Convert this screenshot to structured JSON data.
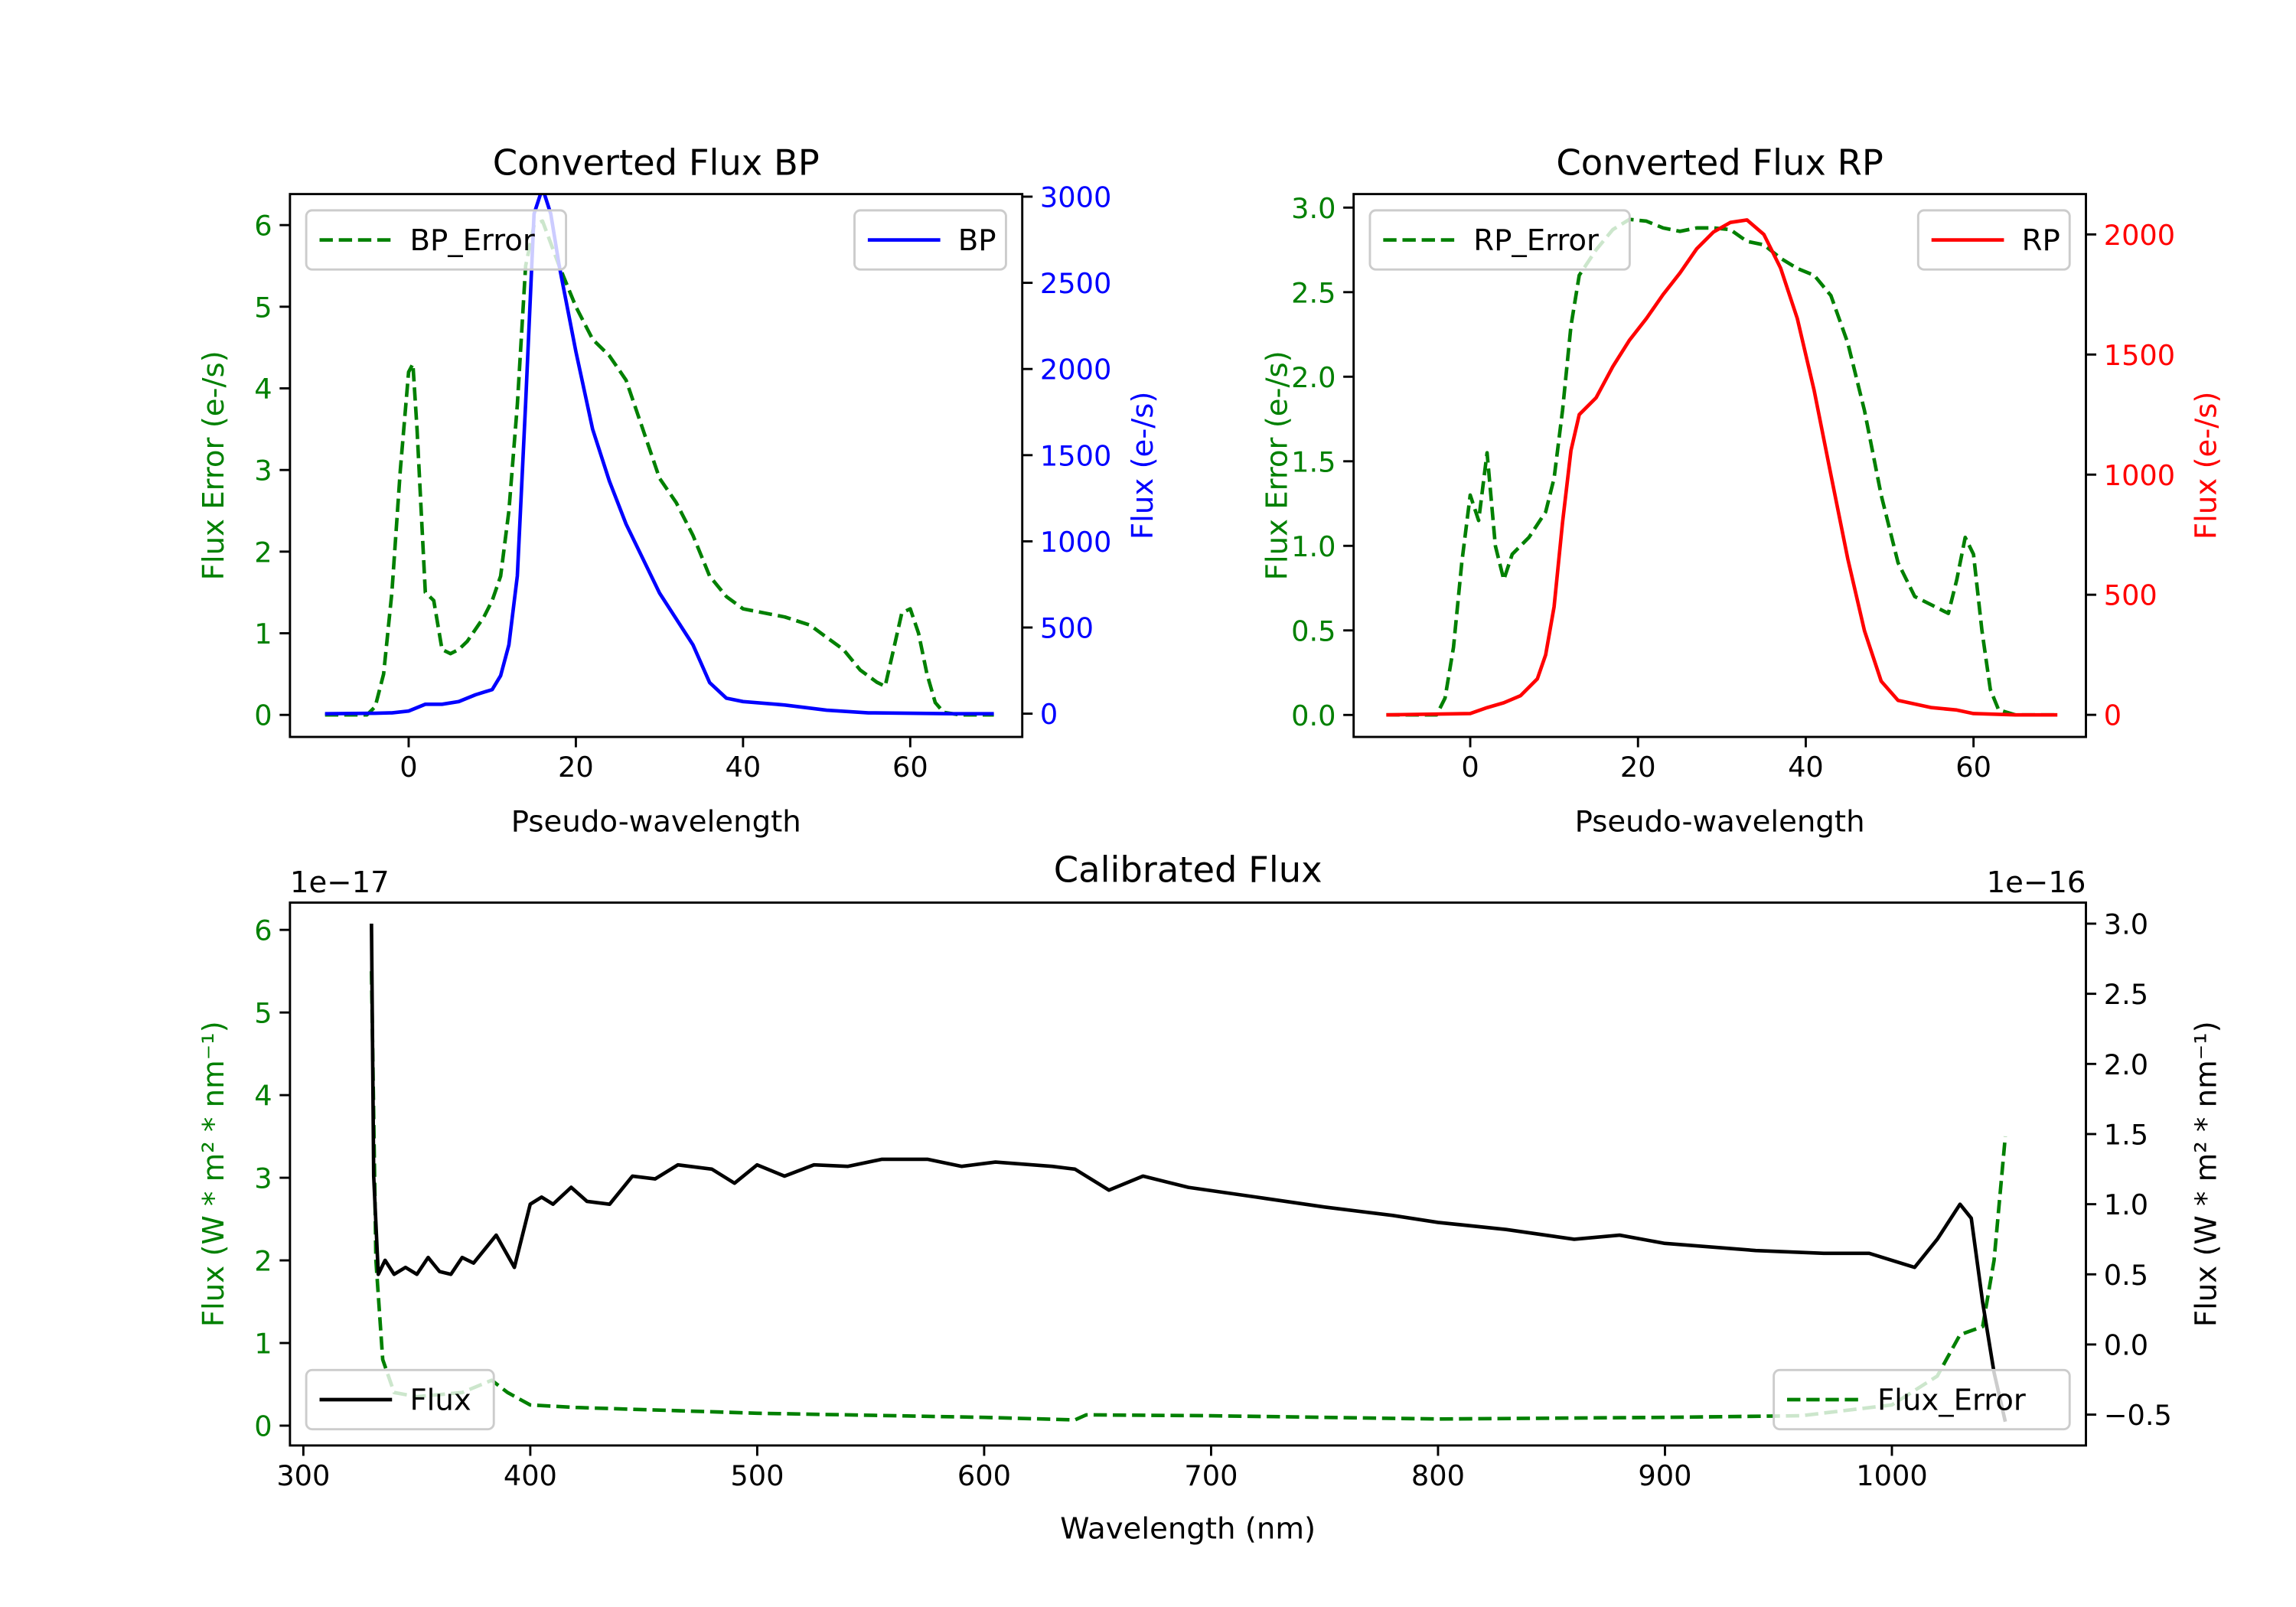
{
  "chart_data": [
    {
      "type": "line",
      "title": "Converted Flux BP",
      "xlabel": "Pseudo-wavelength",
      "xlim": [
        -14.2,
        73.4
      ],
      "xticks": [
        0,
        20,
        40,
        60
      ],
      "xtick_labels": [
        "0",
        "20",
        "40",
        "60"
      ],
      "left_axis": {
        "label": "Flux Error (e-/s)",
        "color": "#008000",
        "ylim": [
          -0.27,
          6.38
        ],
        "ticks": [
          0,
          1,
          2,
          3,
          4,
          5,
          6
        ],
        "tick_labels": [
          "0",
          "1",
          "2",
          "3",
          "4",
          "5",
          "6"
        ]
      },
      "right_axis": {
        "label": "Flux (e-/s)",
        "color": "#0000ff",
        "ylim": [
          -135,
          3015
        ],
        "ticks": [
          0,
          500,
          1000,
          1500,
          2000,
          2500,
          3000
        ],
        "tick_labels": [
          "0",
          "500",
          "1000",
          "1500",
          "2000",
          "2500",
          "3000"
        ]
      },
      "series": [
        {
          "name": "BP_Error",
          "axis": "left",
          "color": "#008000",
          "style": "dashed",
          "x": [
            -10,
            -5,
            -4,
            -3,
            -2,
            -1,
            0,
            0.5,
            1,
            2,
            3,
            4,
            5,
            6,
            7,
            9,
            10,
            11,
            12,
            13,
            14,
            15,
            16,
            18,
            20,
            22,
            24,
            26,
            28,
            30,
            32,
            34,
            36,
            38,
            40,
            45,
            48,
            50,
            52,
            54,
            56,
            57,
            58,
            59,
            60,
            61,
            62,
            63,
            64,
            66,
            70
          ],
          "y": [
            0,
            0,
            0.1,
            0.5,
            1.5,
            3,
            4.2,
            4.3,
            3.5,
            1.5,
            1.4,
            0.8,
            0.75,
            0.8,
            0.9,
            1.2,
            1.4,
            1.7,
            2.5,
            3.8,
            5.5,
            6.0,
            6.05,
            5.5,
            5.0,
            4.6,
            4.4,
            4.1,
            3.5,
            2.9,
            2.6,
            2.2,
            1.7,
            1.45,
            1.3,
            1.2,
            1.1,
            0.95,
            0.8,
            0.55,
            0.4,
            0.35,
            0.8,
            1.25,
            1.3,
            1.0,
            0.5,
            0.15,
            0.03,
            0,
            0
          ]
        },
        {
          "name": "BP",
          "axis": "right",
          "color": "#0000ff",
          "style": "solid",
          "x": [
            -10,
            -4,
            -2,
            0,
            2,
            4,
            6,
            8,
            10,
            11,
            12,
            13,
            14,
            15,
            16,
            17,
            18,
            20,
            22,
            24,
            26,
            28,
            30,
            32,
            34,
            36,
            38,
            40,
            45,
            50,
            55,
            60,
            65,
            70
          ],
          "y": [
            0,
            2,
            5,
            15,
            55,
            55,
            70,
            110,
            140,
            220,
            400,
            800,
            1800,
            2900,
            3050,
            2900,
            2600,
            2100,
            1650,
            1350,
            1100,
            900,
            700,
            550,
            400,
            180,
            90,
            70,
            50,
            20,
            5,
            2,
            0,
            0
          ]
        }
      ],
      "legends": [
        {
          "location": "upper-left",
          "entries": [
            {
              "label": "BP_Error",
              "color": "#008000",
              "style": "dashed"
            }
          ]
        },
        {
          "location": "upper-right",
          "entries": [
            {
              "label": "BP",
              "color": "#0000ff",
              "style": "solid"
            }
          ]
        }
      ]
    },
    {
      "type": "line",
      "title": "Converted Flux RP",
      "xlabel": "Pseudo-wavelength",
      "xlim": [
        -13.9,
        73.4
      ],
      "xticks": [
        0,
        20,
        40,
        60
      ],
      "xtick_labels": [
        "0",
        "20",
        "40",
        "60"
      ],
      "left_axis": {
        "label": "Flux Error (e-/s)",
        "color": "#008000",
        "ylim": [
          -0.13,
          3.08
        ],
        "ticks": [
          0,
          0.5,
          1,
          1.5,
          2,
          2.5,
          3
        ],
        "tick_labels": [
          "0.0",
          "0.5",
          "1.0",
          "1.5",
          "2.0",
          "2.5",
          "3.0"
        ]
      },
      "right_axis": {
        "label": "Flux (e-/s)",
        "color": "#ff0000",
        "ylim": [
          -92,
          2168
        ],
        "ticks": [
          0,
          500,
          1000,
          1500,
          2000
        ],
        "tick_labels": [
          "0",
          "500",
          "1000",
          "1500",
          "2000"
        ]
      },
      "series": [
        {
          "name": "RP_Error",
          "axis": "left",
          "color": "#008000",
          "style": "dashed",
          "x": [
            -10,
            -4,
            -3,
            -2,
            -1,
            0,
            1,
            2,
            3,
            4,
            5,
            7,
            9,
            10,
            11,
            12,
            13,
            15,
            17,
            19,
            21,
            23,
            25,
            27,
            29,
            31,
            33,
            35,
            37,
            39,
            41,
            43,
            45,
            47,
            49,
            51,
            53,
            55,
            57,
            58,
            59,
            60,
            61,
            62,
            63,
            65,
            70
          ],
          "y": [
            0,
            0,
            0.1,
            0.4,
            0.9,
            1.3,
            1.15,
            1.55,
            1.0,
            0.8,
            0.95,
            1.05,
            1.2,
            1.4,
            1.8,
            2.3,
            2.6,
            2.75,
            2.87,
            2.93,
            2.92,
            2.88,
            2.86,
            2.88,
            2.88,
            2.87,
            2.8,
            2.78,
            2.7,
            2.64,
            2.6,
            2.48,
            2.2,
            1.8,
            1.3,
            0.9,
            0.7,
            0.65,
            0.6,
            0.8,
            1.05,
            0.95,
            0.5,
            0.15,
            0.03,
            0,
            0
          ]
        },
        {
          "name": "RP",
          "axis": "right",
          "color": "#ff0000",
          "style": "solid",
          "x": [
            -10,
            0,
            2,
            4,
            6,
            8,
            9,
            10,
            11,
            12,
            13,
            15,
            17,
            19,
            21,
            23,
            25,
            27,
            29,
            31,
            33,
            35,
            37,
            39,
            41,
            43,
            45,
            47,
            49,
            51,
            55,
            58,
            60,
            65,
            70
          ],
          "y": [
            0,
            5,
            30,
            50,
            80,
            150,
            250,
            450,
            800,
            1100,
            1250,
            1320,
            1450,
            1560,
            1650,
            1750,
            1840,
            1940,
            2010,
            2050,
            2060,
            2000,
            1860,
            1650,
            1350,
            1000,
            650,
            350,
            140,
            60,
            30,
            20,
            5,
            0,
            0
          ]
        }
      ],
      "legends": [
        {
          "location": "upper-left",
          "entries": [
            {
              "label": "RP_Error",
              "color": "#008000",
              "style": "dashed"
            }
          ]
        },
        {
          "location": "upper-right",
          "entries": [
            {
              "label": "RP",
              "color": "#ff0000",
              "style": "solid"
            }
          ]
        }
      ]
    },
    {
      "type": "line",
      "title": "Calibrated Flux",
      "xlabel": "Wavelength (nm)",
      "xlim": [
        294.1,
        1085.5
      ],
      "xticks": [
        300,
        400,
        500,
        600,
        700,
        800,
        900,
        1000
      ],
      "xtick_labels": [
        "300",
        "400",
        "500",
        "600",
        "700",
        "800",
        "900",
        "1000"
      ],
      "left_axis": {
        "label": "Flux (W * m² * nm⁻¹)",
        "color": "#008000",
        "ylim": [
          -0.24,
          6.33
        ],
        "offset_text": "1e−17",
        "ticks": [
          0,
          1,
          2,
          3,
          4,
          5,
          6
        ],
        "tick_labels": [
          "0",
          "1",
          "2",
          "3",
          "4",
          "5",
          "6"
        ]
      },
      "right_axis": {
        "label": "Flux (W * m² * nm⁻¹)",
        "color": "#000000",
        "ylim": [
          -0.72,
          3.15
        ],
        "offset_text": "1e−16",
        "ticks": [
          -0.5,
          0,
          0.5,
          1,
          1.5,
          2,
          2.5,
          3
        ],
        "tick_labels": [
          "−0.5",
          "0.0",
          "0.5",
          "1.0",
          "1.5",
          "2.0",
          "2.5",
          "3.0"
        ]
      },
      "series": [
        {
          "name": "Flux_Error",
          "axis": "left",
          "color": "#008000",
          "style": "dashed",
          "x": [
            330,
            332,
            335,
            340,
            350,
            370,
            383,
            390,
            400,
            420,
            500,
            600,
            640,
            645,
            700,
            800,
            900,
            960,
            1000,
            1020,
            1030,
            1040,
            1045,
            1050
          ],
          "y": [
            5.5,
            2.0,
            0.8,
            0.4,
            0.35,
            0.4,
            0.55,
            0.4,
            0.25,
            0.22,
            0.15,
            0.1,
            0.07,
            0.13,
            0.12,
            0.08,
            0.1,
            0.12,
            0.25,
            0.6,
            1.1,
            1.2,
            2.0,
            3.5
          ]
        },
        {
          "name": "Flux",
          "axis": "right",
          "color": "#000000",
          "style": "solid",
          "x": [
            330,
            331,
            333,
            336,
            340,
            345,
            350,
            355,
            360,
            365,
            370,
            375,
            385,
            393,
            400,
            405,
            410,
            418,
            425,
            435,
            445,
            455,
            465,
            480,
            490,
            500,
            512,
            525,
            540,
            555,
            575,
            590,
            605,
            630,
            640,
            655,
            670,
            690,
            720,
            750,
            780,
            800,
            830,
            860,
            880,
            900,
            940,
            970,
            990,
            1010,
            1020,
            1030,
            1035,
            1040,
            1045,
            1050
          ],
          "y": [
            3.0,
            1.2,
            0.5,
            0.6,
            0.5,
            0.55,
            0.5,
            0.62,
            0.52,
            0.5,
            0.62,
            0.58,
            0.78,
            0.55,
            1.0,
            1.05,
            1.0,
            1.12,
            1.02,
            1.0,
            1.2,
            1.18,
            1.28,
            1.25,
            1.15,
            1.28,
            1.2,
            1.28,
            1.27,
            1.32,
            1.32,
            1.27,
            1.3,
            1.27,
            1.25,
            1.1,
            1.2,
            1.12,
            1.05,
            0.98,
            0.92,
            0.87,
            0.82,
            0.75,
            0.78,
            0.72,
            0.67,
            0.65,
            0.65,
            0.55,
            0.75,
            1.0,
            0.9,
            0.3,
            -0.2,
            -0.55
          ]
        }
      ],
      "legends": [
        {
          "location": "lower-left",
          "entries": [
            {
              "label": "Flux",
              "color": "#000000",
              "style": "solid"
            }
          ]
        },
        {
          "location": "lower-right",
          "entries": [
            {
              "label": "Flux_Error",
              "color": "#008000",
              "style": "dashed"
            }
          ]
        }
      ]
    }
  ]
}
